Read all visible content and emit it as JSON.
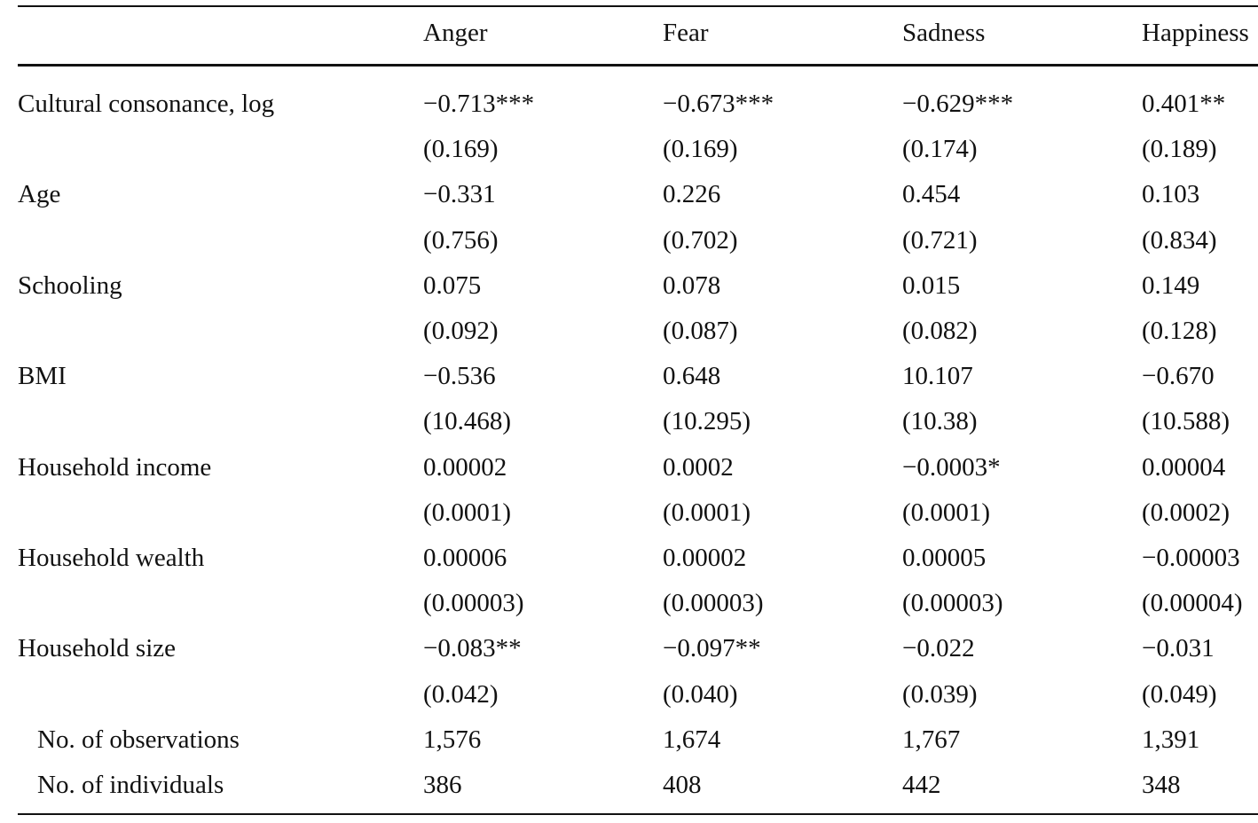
{
  "table": {
    "columns": [
      "Anger",
      "Fear",
      "Sadness",
      "Happiness"
    ],
    "variables": [
      {
        "label": "Cultural consonance, log",
        "coef": [
          "−0.713***",
          "−0.673***",
          "−0.629***",
          "0.401**"
        ],
        "se": [
          "(0.169)",
          "(0.169)",
          "(0.174)",
          "(0.189)"
        ]
      },
      {
        "label": "Age",
        "coef": [
          "−0.331",
          "0.226",
          "0.454",
          "0.103"
        ],
        "se": [
          "(0.756)",
          "(0.702)",
          "(0.721)",
          "(0.834)"
        ]
      },
      {
        "label": "Schooling",
        "coef": [
          "0.075",
          "0.078",
          "0.015",
          "0.149"
        ],
        "se": [
          "(0.092)",
          "(0.087)",
          "(0.082)",
          "(0.128)"
        ]
      },
      {
        "label": "BMI",
        "coef": [
          "−0.536",
          "0.648",
          "10.107",
          "−0.670"
        ],
        "se": [
          "(10.468)",
          "(10.295)",
          "(10.38)",
          "(10.588)"
        ]
      },
      {
        "label": "Household income",
        "coef": [
          "0.00002",
          "0.0002",
          "−0.0003*",
          "0.00004"
        ],
        "se": [
          "(0.0001)",
          "(0.0001)",
          "(0.0001)",
          "(0.0002)"
        ]
      },
      {
        "label": "Household wealth",
        "coef": [
          "0.00006",
          "0.00002",
          "0.00005",
          "−0.00003"
        ],
        "se": [
          "(0.00003)",
          "(0.00003)",
          "(0.00003)",
          "(0.00004)"
        ]
      },
      {
        "label": "Household size",
        "coef": [
          "−0.083**",
          "−0.097**",
          "−0.022",
          "−0.031"
        ],
        "se": [
          "(0.042)",
          "(0.040)",
          "(0.039)",
          "(0.049)"
        ]
      }
    ],
    "stats": [
      {
        "label": "No. of observations",
        "values": [
          "1,576",
          "1,674",
          "1,767",
          "1,391"
        ]
      },
      {
        "label": "No. of individuals",
        "values": [
          "386",
          "408",
          "442",
          "348"
        ]
      }
    ]
  }
}
